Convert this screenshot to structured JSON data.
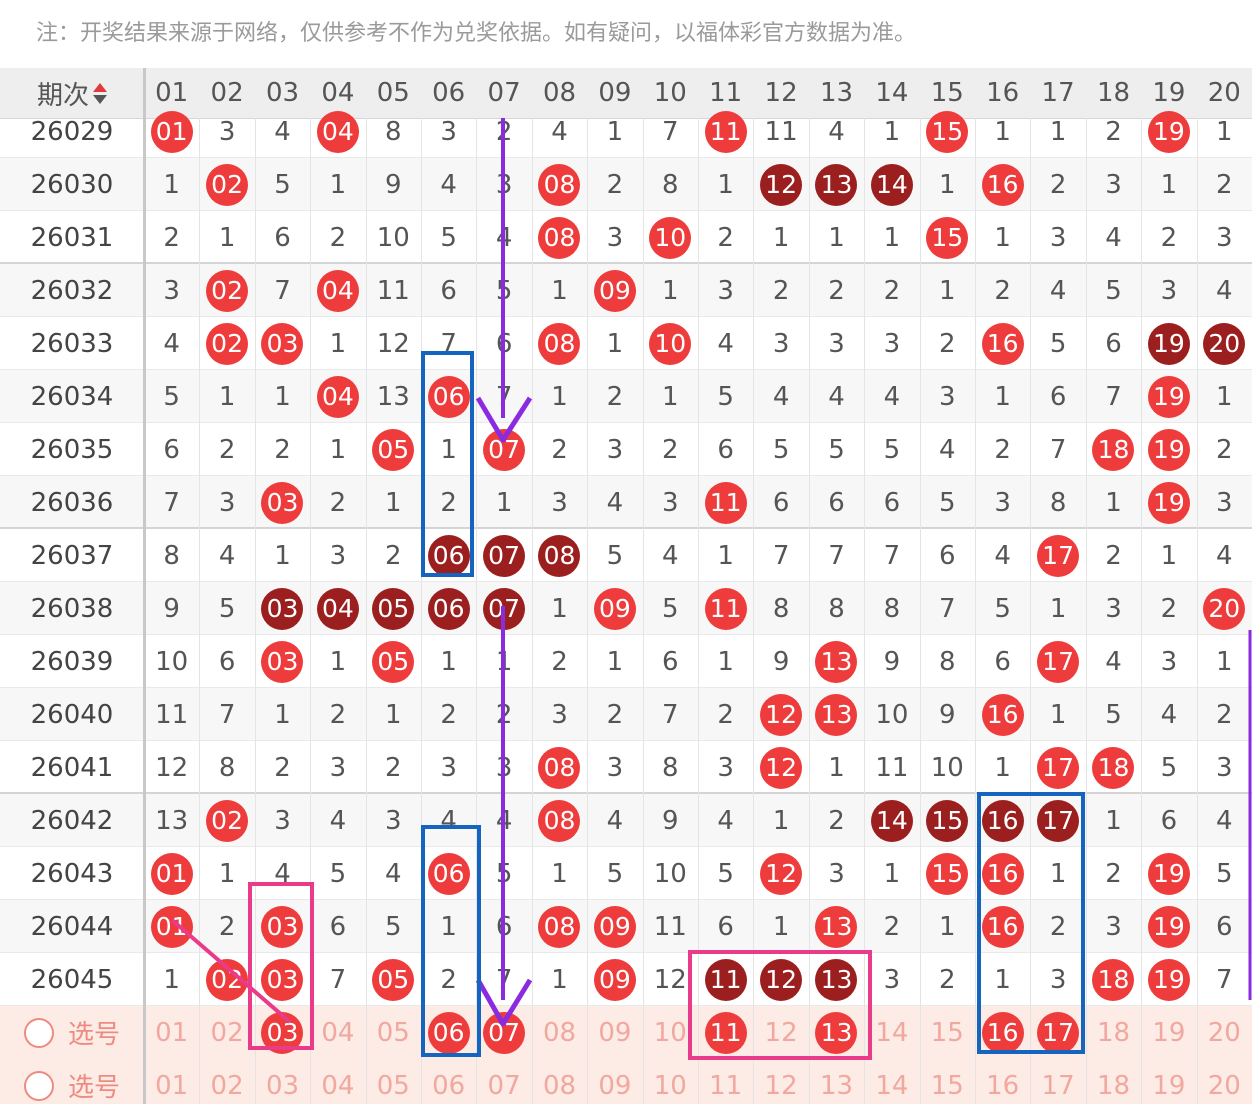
{
  "notice": "注：开奖结果来源于网络，仅供参考不作为兑奖依据。如有疑问，以福体彩官方数据为准。",
  "header": {
    "issue_label": "期次",
    "numbers": [
      "01",
      "02",
      "03",
      "04",
      "05",
      "06",
      "07",
      "08",
      "09",
      "10",
      "11",
      "12",
      "13",
      "14",
      "15",
      "16",
      "17",
      "18",
      "19",
      "20"
    ]
  },
  "rows": [
    {
      "issue": "26029",
      "cells": [
        {
          "v": "01",
          "s": "red"
        },
        {
          "v": "3"
        },
        {
          "v": "4"
        },
        {
          "v": "04",
          "s": "red"
        },
        {
          "v": "8"
        },
        {
          "v": "3"
        },
        {
          "v": "2"
        },
        {
          "v": "4"
        },
        {
          "v": "1"
        },
        {
          "v": "7"
        },
        {
          "v": "11",
          "s": "red"
        },
        {
          "v": "11"
        },
        {
          "v": "4"
        },
        {
          "v": "1"
        },
        {
          "v": "15",
          "s": "red"
        },
        {
          "v": "1"
        },
        {
          "v": "1"
        },
        {
          "v": "2"
        },
        {
          "v": "19",
          "s": "red"
        },
        {
          "v": "1"
        }
      ]
    },
    {
      "issue": "26030",
      "cells": [
        {
          "v": "1"
        },
        {
          "v": "02",
          "s": "red"
        },
        {
          "v": "5"
        },
        {
          "v": "1"
        },
        {
          "v": "9"
        },
        {
          "v": "4"
        },
        {
          "v": "3"
        },
        {
          "v": "08",
          "s": "red"
        },
        {
          "v": "2"
        },
        {
          "v": "8"
        },
        {
          "v": "1"
        },
        {
          "v": "12",
          "s": "dark"
        },
        {
          "v": "13",
          "s": "dark"
        },
        {
          "v": "14",
          "s": "dark"
        },
        {
          "v": "1"
        },
        {
          "v": "16",
          "s": "red"
        },
        {
          "v": "2"
        },
        {
          "v": "3"
        },
        {
          "v": "1"
        },
        {
          "v": "2"
        }
      ]
    },
    {
      "issue": "26031",
      "cells": [
        {
          "v": "2"
        },
        {
          "v": "1"
        },
        {
          "v": "6"
        },
        {
          "v": "2"
        },
        {
          "v": "10"
        },
        {
          "v": "5"
        },
        {
          "v": "4"
        },
        {
          "v": "08",
          "s": "red"
        },
        {
          "v": "3"
        },
        {
          "v": "10",
          "s": "red"
        },
        {
          "v": "2"
        },
        {
          "v": "1"
        },
        {
          "v": "1"
        },
        {
          "v": "1"
        },
        {
          "v": "15",
          "s": "red"
        },
        {
          "v": "1"
        },
        {
          "v": "3"
        },
        {
          "v": "4"
        },
        {
          "v": "2"
        },
        {
          "v": "3"
        }
      ]
    },
    {
      "issue": "26032",
      "cells": [
        {
          "v": "3"
        },
        {
          "v": "02",
          "s": "red"
        },
        {
          "v": "7"
        },
        {
          "v": "04",
          "s": "red"
        },
        {
          "v": "11"
        },
        {
          "v": "6"
        },
        {
          "v": "5"
        },
        {
          "v": "1"
        },
        {
          "v": "09",
          "s": "red"
        },
        {
          "v": "1"
        },
        {
          "v": "3"
        },
        {
          "v": "2"
        },
        {
          "v": "2"
        },
        {
          "v": "2"
        },
        {
          "v": "1"
        },
        {
          "v": "2"
        },
        {
          "v": "4"
        },
        {
          "v": "5"
        },
        {
          "v": "3"
        },
        {
          "v": "4"
        }
      ]
    },
    {
      "issue": "26033",
      "cells": [
        {
          "v": "4"
        },
        {
          "v": "02",
          "s": "red"
        },
        {
          "v": "03",
          "s": "red"
        },
        {
          "v": "1"
        },
        {
          "v": "12"
        },
        {
          "v": "7"
        },
        {
          "v": "6"
        },
        {
          "v": "08",
          "s": "red"
        },
        {
          "v": "1"
        },
        {
          "v": "10",
          "s": "red"
        },
        {
          "v": "4"
        },
        {
          "v": "3"
        },
        {
          "v": "3"
        },
        {
          "v": "3"
        },
        {
          "v": "2"
        },
        {
          "v": "16",
          "s": "red"
        },
        {
          "v": "5"
        },
        {
          "v": "6"
        },
        {
          "v": "19",
          "s": "dark"
        },
        {
          "v": "20",
          "s": "dark"
        }
      ]
    },
    {
      "issue": "26034",
      "cells": [
        {
          "v": "5"
        },
        {
          "v": "1"
        },
        {
          "v": "1"
        },
        {
          "v": "04",
          "s": "red"
        },
        {
          "v": "13"
        },
        {
          "v": "06",
          "s": "red"
        },
        {
          "v": "7"
        },
        {
          "v": "1"
        },
        {
          "v": "2"
        },
        {
          "v": "1"
        },
        {
          "v": "5"
        },
        {
          "v": "4"
        },
        {
          "v": "4"
        },
        {
          "v": "4"
        },
        {
          "v": "3"
        },
        {
          "v": "1"
        },
        {
          "v": "6"
        },
        {
          "v": "7"
        },
        {
          "v": "19",
          "s": "red"
        },
        {
          "v": "1"
        }
      ]
    },
    {
      "issue": "26035",
      "cells": [
        {
          "v": "6"
        },
        {
          "v": "2"
        },
        {
          "v": "2"
        },
        {
          "v": "1"
        },
        {
          "v": "05",
          "s": "red"
        },
        {
          "v": "1"
        },
        {
          "v": "07",
          "s": "red"
        },
        {
          "v": "2"
        },
        {
          "v": "3"
        },
        {
          "v": "2"
        },
        {
          "v": "6"
        },
        {
          "v": "5"
        },
        {
          "v": "5"
        },
        {
          "v": "5"
        },
        {
          "v": "4"
        },
        {
          "v": "2"
        },
        {
          "v": "7"
        },
        {
          "v": "18",
          "s": "red"
        },
        {
          "v": "19",
          "s": "red"
        },
        {
          "v": "2"
        }
      ]
    },
    {
      "issue": "26036",
      "cells": [
        {
          "v": "7"
        },
        {
          "v": "3"
        },
        {
          "v": "03",
          "s": "red"
        },
        {
          "v": "2"
        },
        {
          "v": "1"
        },
        {
          "v": "2"
        },
        {
          "v": "1"
        },
        {
          "v": "3"
        },
        {
          "v": "4"
        },
        {
          "v": "3"
        },
        {
          "v": "11",
          "s": "red"
        },
        {
          "v": "6"
        },
        {
          "v": "6"
        },
        {
          "v": "6"
        },
        {
          "v": "5"
        },
        {
          "v": "3"
        },
        {
          "v": "8"
        },
        {
          "v": "1"
        },
        {
          "v": "19",
          "s": "red"
        },
        {
          "v": "3"
        }
      ]
    },
    {
      "issue": "26037",
      "cells": [
        {
          "v": "8"
        },
        {
          "v": "4"
        },
        {
          "v": "1"
        },
        {
          "v": "3"
        },
        {
          "v": "2"
        },
        {
          "v": "06",
          "s": "dark"
        },
        {
          "v": "07",
          "s": "dark"
        },
        {
          "v": "08",
          "s": "dark"
        },
        {
          "v": "5"
        },
        {
          "v": "4"
        },
        {
          "v": "1"
        },
        {
          "v": "7"
        },
        {
          "v": "7"
        },
        {
          "v": "7"
        },
        {
          "v": "6"
        },
        {
          "v": "4"
        },
        {
          "v": "17",
          "s": "red"
        },
        {
          "v": "2"
        },
        {
          "v": "1"
        },
        {
          "v": "4"
        }
      ]
    },
    {
      "issue": "26038",
      "cells": [
        {
          "v": "9"
        },
        {
          "v": "5"
        },
        {
          "v": "03",
          "s": "dark"
        },
        {
          "v": "04",
          "s": "dark"
        },
        {
          "v": "05",
          "s": "dark"
        },
        {
          "v": "06",
          "s": "dark"
        },
        {
          "v": "07",
          "s": "dark"
        },
        {
          "v": "1"
        },
        {
          "v": "09",
          "s": "red"
        },
        {
          "v": "5"
        },
        {
          "v": "11",
          "s": "red"
        },
        {
          "v": "8"
        },
        {
          "v": "8"
        },
        {
          "v": "8"
        },
        {
          "v": "7"
        },
        {
          "v": "5"
        },
        {
          "v": "1"
        },
        {
          "v": "3"
        },
        {
          "v": "2"
        },
        {
          "v": "20",
          "s": "red"
        }
      ]
    },
    {
      "issue": "26039",
      "cells": [
        {
          "v": "10"
        },
        {
          "v": "6"
        },
        {
          "v": "03",
          "s": "red"
        },
        {
          "v": "1"
        },
        {
          "v": "05",
          "s": "red"
        },
        {
          "v": "1"
        },
        {
          "v": "1"
        },
        {
          "v": "2"
        },
        {
          "v": "1"
        },
        {
          "v": "6"
        },
        {
          "v": "1"
        },
        {
          "v": "9"
        },
        {
          "v": "13",
          "s": "red"
        },
        {
          "v": "9"
        },
        {
          "v": "8"
        },
        {
          "v": "6"
        },
        {
          "v": "17",
          "s": "red"
        },
        {
          "v": "4"
        },
        {
          "v": "3"
        },
        {
          "v": "1"
        }
      ]
    },
    {
      "issue": "26040",
      "cells": [
        {
          "v": "11"
        },
        {
          "v": "7"
        },
        {
          "v": "1"
        },
        {
          "v": "2"
        },
        {
          "v": "1"
        },
        {
          "v": "2"
        },
        {
          "v": "2"
        },
        {
          "v": "3"
        },
        {
          "v": "2"
        },
        {
          "v": "7"
        },
        {
          "v": "2"
        },
        {
          "v": "12",
          "s": "red"
        },
        {
          "v": "13",
          "s": "red"
        },
        {
          "v": "10"
        },
        {
          "v": "9"
        },
        {
          "v": "16",
          "s": "red"
        },
        {
          "v": "1"
        },
        {
          "v": "5"
        },
        {
          "v": "4"
        },
        {
          "v": "2"
        }
      ]
    },
    {
      "issue": "26041",
      "cells": [
        {
          "v": "12"
        },
        {
          "v": "8"
        },
        {
          "v": "2"
        },
        {
          "v": "3"
        },
        {
          "v": "2"
        },
        {
          "v": "3"
        },
        {
          "v": "3"
        },
        {
          "v": "08",
          "s": "red"
        },
        {
          "v": "3"
        },
        {
          "v": "8"
        },
        {
          "v": "3"
        },
        {
          "v": "12",
          "s": "red"
        },
        {
          "v": "1"
        },
        {
          "v": "11"
        },
        {
          "v": "10"
        },
        {
          "v": "1"
        },
        {
          "v": "17",
          "s": "red"
        },
        {
          "v": "18",
          "s": "red"
        },
        {
          "v": "5"
        },
        {
          "v": "3"
        }
      ]
    },
    {
      "issue": "26042",
      "cells": [
        {
          "v": "13"
        },
        {
          "v": "02",
          "s": "red"
        },
        {
          "v": "3"
        },
        {
          "v": "4"
        },
        {
          "v": "3"
        },
        {
          "v": "4"
        },
        {
          "v": "4"
        },
        {
          "v": "08",
          "s": "red"
        },
        {
          "v": "4"
        },
        {
          "v": "9"
        },
        {
          "v": "4"
        },
        {
          "v": "1"
        },
        {
          "v": "2"
        },
        {
          "v": "14",
          "s": "dark"
        },
        {
          "v": "15",
          "s": "dark"
        },
        {
          "v": "16",
          "s": "dark"
        },
        {
          "v": "17",
          "s": "dark"
        },
        {
          "v": "1"
        },
        {
          "v": "6"
        },
        {
          "v": "4"
        }
      ]
    },
    {
      "issue": "26043",
      "cells": [
        {
          "v": "01",
          "s": "red"
        },
        {
          "v": "1"
        },
        {
          "v": "4"
        },
        {
          "v": "5"
        },
        {
          "v": "4"
        },
        {
          "v": "06",
          "s": "red"
        },
        {
          "v": "5"
        },
        {
          "v": "1"
        },
        {
          "v": "5"
        },
        {
          "v": "10"
        },
        {
          "v": "5"
        },
        {
          "v": "12",
          "s": "red"
        },
        {
          "v": "3"
        },
        {
          "v": "1"
        },
        {
          "v": "15",
          "s": "red"
        },
        {
          "v": "16",
          "s": "red"
        },
        {
          "v": "1"
        },
        {
          "v": "2"
        },
        {
          "v": "19",
          "s": "red"
        },
        {
          "v": "5"
        }
      ]
    },
    {
      "issue": "26044",
      "cells": [
        {
          "v": "01",
          "s": "red"
        },
        {
          "v": "2"
        },
        {
          "v": "03",
          "s": "red"
        },
        {
          "v": "6"
        },
        {
          "v": "5"
        },
        {
          "v": "1"
        },
        {
          "v": "6"
        },
        {
          "v": "08",
          "s": "red"
        },
        {
          "v": "09",
          "s": "red"
        },
        {
          "v": "11"
        },
        {
          "v": "6"
        },
        {
          "v": "1"
        },
        {
          "v": "13",
          "s": "red"
        },
        {
          "v": "2"
        },
        {
          "v": "1"
        },
        {
          "v": "16",
          "s": "red"
        },
        {
          "v": "2"
        },
        {
          "v": "3"
        },
        {
          "v": "19",
          "s": "red"
        },
        {
          "v": "6"
        }
      ]
    },
    {
      "issue": "26045",
      "cells": [
        {
          "v": "1"
        },
        {
          "v": "02",
          "s": "red"
        },
        {
          "v": "03",
          "s": "red"
        },
        {
          "v": "7"
        },
        {
          "v": "05",
          "s": "red"
        },
        {
          "v": "2"
        },
        {
          "v": "7"
        },
        {
          "v": "1"
        },
        {
          "v": "09",
          "s": "red"
        },
        {
          "v": "12"
        },
        {
          "v": "11",
          "s": "dark"
        },
        {
          "v": "12",
          "s": "dark"
        },
        {
          "v": "13",
          "s": "dark"
        },
        {
          "v": "3"
        },
        {
          "v": "2"
        },
        {
          "v": "1"
        },
        {
          "v": "3"
        },
        {
          "v": "18",
          "s": "red"
        },
        {
          "v": "19",
          "s": "red"
        },
        {
          "v": "7"
        }
      ]
    }
  ],
  "select_rows": [
    {
      "label": "选号",
      "selected": [
        "03",
        "06",
        "07",
        "11",
        "13",
        "16",
        "17"
      ]
    },
    {
      "label": "选号",
      "selected": []
    }
  ],
  "colors": {
    "ball_red": "#ee3b3b",
    "ball_dark": "#9c1f1f",
    "purple_arrow": "#8a2be2",
    "blue_box": "#1565c0",
    "pink_box": "#ea3b8a"
  }
}
